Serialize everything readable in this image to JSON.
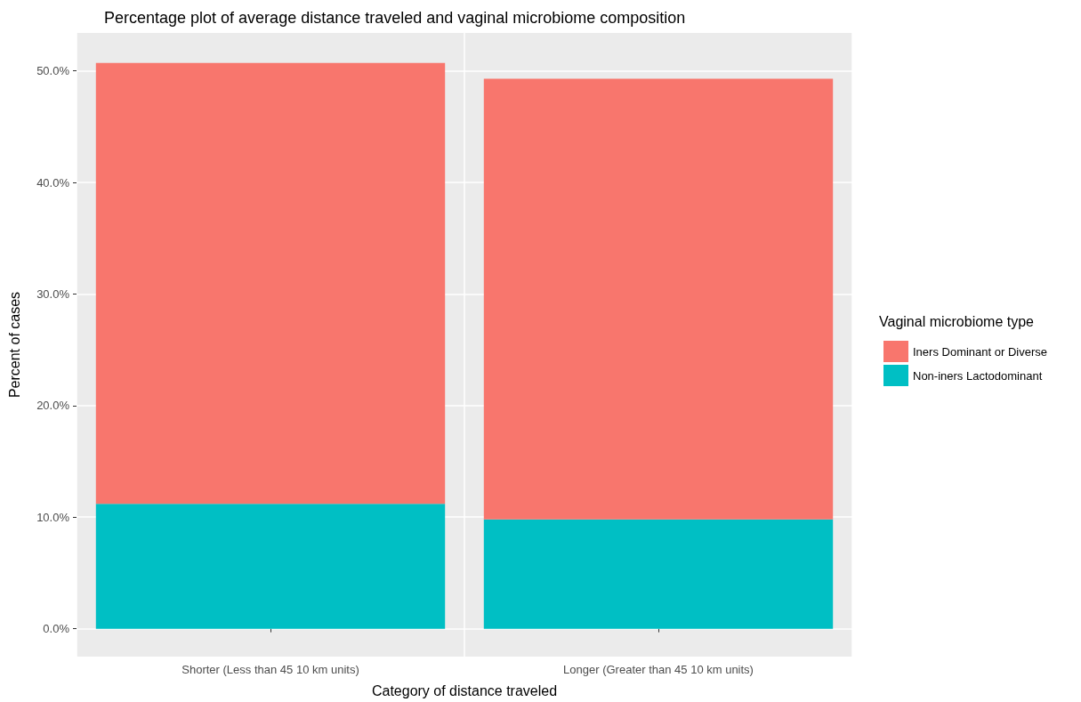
{
  "chart_data": {
    "type": "bar",
    "title": "Percentage plot of average distance traveled and vaginal microbiome composition",
    "xlabel": "Category of distance traveled",
    "ylabel": "Percent of cases",
    "legend_title": "Vaginal microbiome type",
    "categories": [
      "Shorter (Less than 45 10 km units)",
      "Longer (Greater than 45 10 km units)"
    ],
    "stacked": true,
    "series": [
      {
        "name": "Non-iners Lactodominant",
        "color": "#00bfc4",
        "values": [
          11.2,
          9.8
        ]
      },
      {
        "name": "Iners Dominant or Diverse",
        "color": "#f8766d",
        "values": [
          39.5,
          39.5
        ]
      }
    ],
    "ylim": [
      -2.5,
      53.4
    ],
    "yticks": [
      {
        "value": 0,
        "label": "0.0%"
      },
      {
        "value": 10,
        "label": "10.0%"
      },
      {
        "value": 20,
        "label": "20.0%"
      },
      {
        "value": 30,
        "label": "30.0%"
      },
      {
        "value": 40,
        "label": "40.0%"
      },
      {
        "value": 50,
        "label": "50.0%"
      }
    ],
    "grid": true,
    "legend": "right"
  }
}
